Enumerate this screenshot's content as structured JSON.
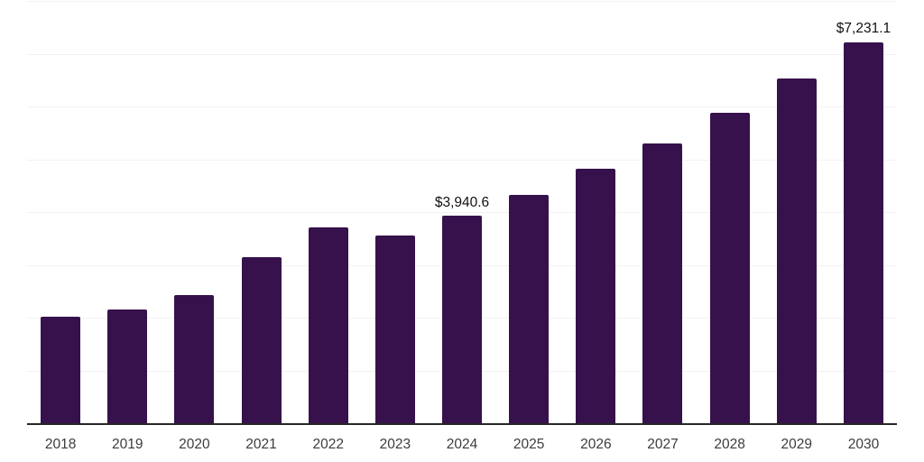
{
  "chart_data": {
    "type": "bar",
    "title": "",
    "xlabel": "",
    "ylabel": "",
    "categories": [
      "2018",
      "2019",
      "2020",
      "2021",
      "2022",
      "2023",
      "2024",
      "2025",
      "2026",
      "2027",
      "2028",
      "2029",
      "2030"
    ],
    "values": [
      2030,
      2170,
      2440,
      3160,
      3720,
      3570,
      3940.6,
      4350,
      4830,
      5325,
      5905,
      6540,
      7231.1
    ],
    "annotations": [
      {
        "category": "2024",
        "text": "$3,940.6"
      },
      {
        "category": "2030",
        "text": "$7,231.1"
      }
    ],
    "ylim": [
      0,
      8000
    ],
    "gridline_step": 1000,
    "grid": true,
    "legend": "none",
    "colors": {
      "bar": "#36114B",
      "gridline": "#F2F2F2",
      "axis": "#262626",
      "tick_label": "#3C3C3C",
      "annotation": "#111111",
      "background": "#FFFFFF"
    }
  }
}
